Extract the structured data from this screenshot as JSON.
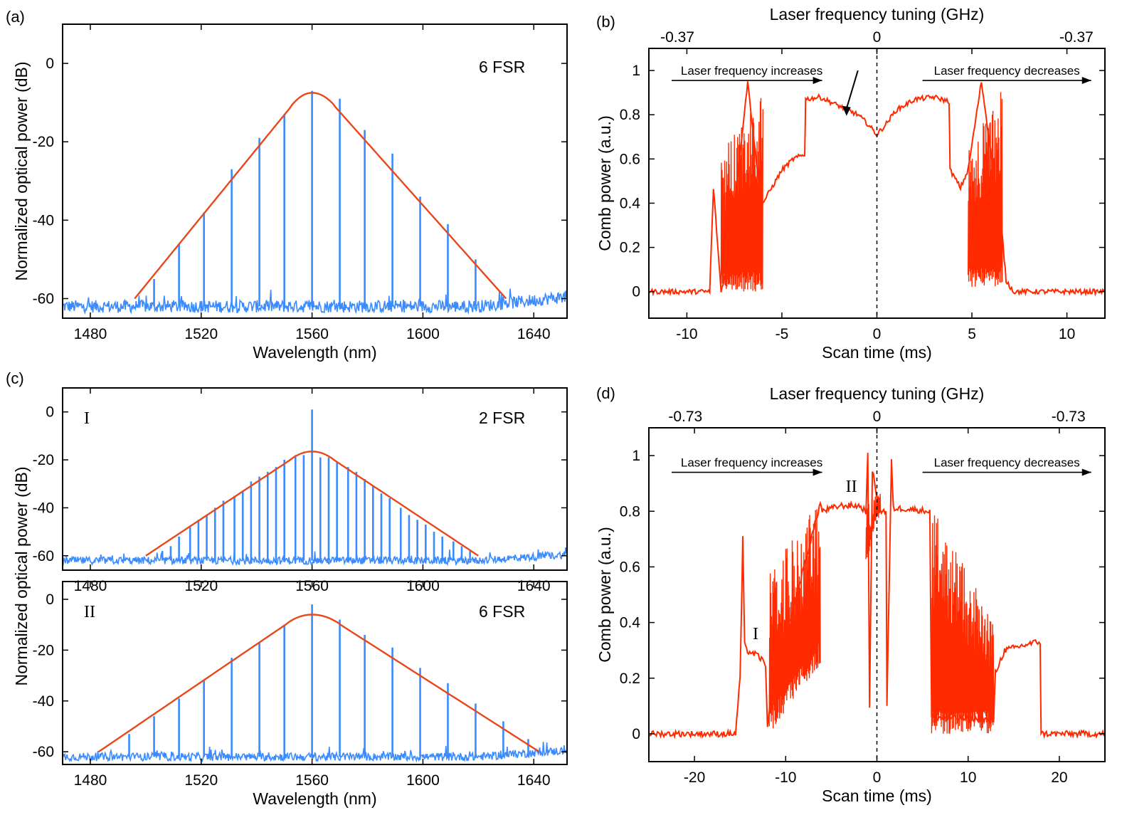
{
  "colors": {
    "spectrum": "#3a8bff",
    "fit": "#e8481c",
    "comb": "#ff2a00",
    "axis": "#000000"
  },
  "chart_data": [
    {
      "id": "a",
      "panel_label": "(a)",
      "type": "line",
      "xlabel": "Wavelength (nm)",
      "ylabel": "Normalized optical power (dB)",
      "xlim": [
        1470,
        1652
      ],
      "ylim": [
        -65,
        10
      ],
      "xticks": [
        1480,
        1520,
        1560,
        1600,
        1640
      ],
      "yticks": [
        0,
        -20,
        -40,
        -60
      ],
      "annotation": "6 FSR",
      "noise_floor": -62,
      "envelope": {
        "center": 1560,
        "peak": -7.5,
        "left_end": 1496,
        "right_end": 1630
      },
      "comb_lines": {
        "x": [
          1503,
          1512,
          1521,
          1531,
          1541,
          1550,
          1560,
          1570,
          1579,
          1589,
          1599,
          1609,
          1619
        ],
        "y": [
          -55,
          -46,
          -38,
          -27,
          -19,
          -13,
          -7,
          -9,
          -17,
          -23,
          -34,
          -41,
          -50
        ]
      }
    },
    {
      "id": "b",
      "panel_label": "(b)",
      "type": "line",
      "xlabel": "Scan time (ms)",
      "ylabel": "Comb power (a.u.)",
      "top_label": "Laser frequency tuning (GHz)",
      "top_ticks": [
        {
          "at": -10.5,
          "label": "-0.37"
        },
        {
          "at": 0,
          "label": "0"
        },
        {
          "at": 10.5,
          "label": "-0.37"
        }
      ],
      "xlim": [
        -12,
        12
      ],
      "ylim": [
        -0.12,
        1.1
      ],
      "xticks": [
        -10,
        -5,
        0,
        5,
        10
      ],
      "yticks": [
        0,
        0.2,
        0.4,
        0.6,
        0.8,
        1
      ],
      "arrow_left": "Laser frequency increases",
      "arrow_right": "Laser frequency decreases",
      "series": {
        "x": [
          -12,
          -8.8,
          -8.6,
          -8.2,
          -7.8,
          -6.8,
          -6.1,
          -6.0,
          -5.0,
          -4.4,
          -3.8,
          -3.75,
          -3.0,
          -2.0,
          -1.0,
          -0.5,
          0,
          0.5,
          1.0,
          2.0,
          3.0,
          3.8,
          3.85,
          4.4,
          4.8,
          5.5,
          6.6,
          6.8,
          7.2,
          12
        ],
        "y": [
          0,
          0,
          0.47,
          0.0,
          0.15,
          0.95,
          0.4,
          0.4,
          0.55,
          0.6,
          0.62,
          0.87,
          0.88,
          0.84,
          0.8,
          0.76,
          0.71,
          0.76,
          0.82,
          0.87,
          0.88,
          0.86,
          0.55,
          0.47,
          0.55,
          0.95,
          0.25,
          0.05,
          0.0,
          0
        ]
      },
      "burst_regions": [
        {
          "x0": -8.2,
          "x1": -6.0,
          "ymin": 0.0,
          "ymax": 0.9
        },
        {
          "x0": 4.8,
          "x1": 6.6,
          "ymin": 0.02,
          "ymax": 0.92
        }
      ]
    },
    {
      "id": "c1",
      "panel_label": "(c)",
      "type": "line",
      "xlabel": "",
      "ylabel": "",
      "xlim": [
        1470,
        1652
      ],
      "ylim": [
        -66,
        10
      ],
      "xticks": [
        1480,
        1520,
        1560,
        1600,
        1640
      ],
      "yticks": [
        0,
        -20,
        -40,
        -60
      ],
      "roman": "I",
      "annotation": "2 FSR",
      "noise_floor": -62,
      "envelope": {
        "center": 1560,
        "peak": -16.5,
        "left_end": 1500,
        "right_end": 1620
      },
      "comb_lines": {
        "x": [
          1506,
          1509,
          1512,
          1516,
          1519,
          1522,
          1525,
          1528,
          1532,
          1535,
          1538,
          1541,
          1544,
          1547,
          1550,
          1554,
          1557,
          1560,
          1563,
          1566,
          1569,
          1573,
          1576,
          1579,
          1582,
          1585,
          1588,
          1592,
          1595,
          1598,
          1601,
          1604,
          1607,
          1611,
          1614,
          1617
        ],
        "y": [
          -58,
          -56,
          -52,
          -48,
          -45,
          -43,
          -40,
          -37,
          -35,
          -33,
          -29,
          -27,
          -25,
          -23,
          -20,
          -18,
          -18,
          1,
          -19,
          -19,
          -21,
          -23,
          -25,
          -28,
          -31,
          -34,
          -36,
          -40,
          -43,
          -45,
          -47,
          -50,
          -52,
          -54,
          -56,
          -58
        ]
      }
    },
    {
      "id": "c2",
      "panel_label": "",
      "type": "line",
      "xlabel": "Wavelength (nm)",
      "ylabel": "",
      "xlim": [
        1470,
        1652
      ],
      "ylim": [
        -65,
        7
      ],
      "xticks": [
        1480,
        1520,
        1560,
        1600,
        1640
      ],
      "yticks": [
        0,
        -20,
        -40,
        -60
      ],
      "roman": "II",
      "annotation": "6 FSR",
      "noise_floor": -62,
      "envelope": {
        "center": 1560,
        "peak": -6,
        "left_end": 1483,
        "right_end": 1642
      },
      "comb_lines": {
        "x": [
          1494,
          1503,
          1512,
          1521,
          1531,
          1541,
          1550,
          1560,
          1570,
          1579,
          1589,
          1599,
          1609,
          1619,
          1629,
          1638
        ],
        "y": [
          -53,
          -46,
          -39,
          -32,
          -23,
          -17,
          -10,
          -2,
          -8,
          -14,
          -19,
          -27,
          -33,
          -41,
          -48,
          -55
        ]
      }
    },
    {
      "id": "d",
      "panel_label": "(d)",
      "type": "line",
      "xlabel": "Scan time (ms)",
      "ylabel": "Comb power (a.u.)",
      "top_label": "Laser frequency tuning (GHz)",
      "top_ticks": [
        {
          "at": -21,
          "label": "-0.73"
        },
        {
          "at": 0,
          "label": "0"
        },
        {
          "at": 21,
          "label": "-0.73"
        }
      ],
      "xlim": [
        -25,
        25
      ],
      "ylim": [
        -0.1,
        1.1
      ],
      "xticks": [
        -20,
        -10,
        0,
        10,
        20
      ],
      "yticks": [
        0,
        0.2,
        0.4,
        0.6,
        0.8,
        1
      ],
      "arrow_left": "Laser frequency increases",
      "arrow_right": "Laser frequency decreases",
      "roman_labels": [
        {
          "text": "I",
          "x": -13.3,
          "y": 0.34
        },
        {
          "text": "II",
          "x": -2.8,
          "y": 0.87
        }
      ],
      "series": {
        "x": [
          -25,
          -15.5,
          -15.0,
          -14.7,
          -14.5,
          -14.3,
          -13,
          -12.2,
          -12.0,
          -11.5,
          -6.2,
          -6.0,
          -4,
          -2,
          -1.2,
          -1.0,
          -0.8,
          -0.5,
          0,
          0.5,
          1.0,
          1.1,
          1.6,
          1.8,
          3,
          5.8,
          6.0,
          12.8,
          13.0,
          14,
          17.5,
          17.9,
          18.0,
          25
        ],
        "y": [
          0,
          0,
          0.2,
          0.7,
          0.32,
          0.3,
          0.28,
          0.25,
          0.02,
          0.15,
          0.83,
          0.8,
          0.82,
          0.82,
          0.8,
          1.0,
          0.1,
          0.95,
          0.85,
          0.8,
          0.8,
          0.1,
          0.98,
          0.81,
          0.81,
          0.8,
          0.06,
          0.05,
          0.22,
          0.3,
          0.33,
          0.33,
          0.0,
          0
        ]
      },
      "burst_regions": [
        {
          "x0": -11.8,
          "x1": -6.2,
          "ymin": 0.0,
          "ymax": 0.84
        },
        {
          "x0": 6.0,
          "x1": 12.8,
          "ymin": 0.0,
          "ymax": 0.82
        },
        {
          "x0": -1.2,
          "x1": 0.4,
          "ymin": 0.6,
          "ymax": 0.9
        }
      ]
    }
  ]
}
